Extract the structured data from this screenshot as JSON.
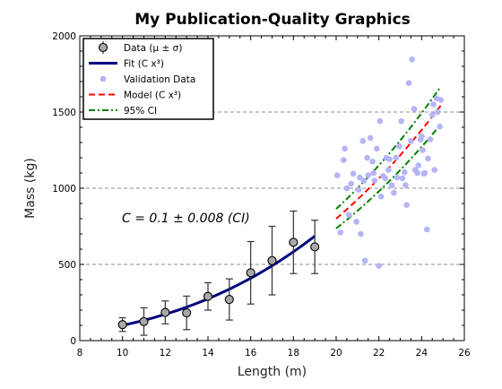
{
  "chart_data": {
    "type": "scatter",
    "title": "My Publication-Quality Graphics",
    "xlabel": "Length (m)",
    "ylabel": "Mass (kg)",
    "xlim": [
      8,
      26
    ],
    "ylim": [
      0,
      2000
    ],
    "xticks": [
      8,
      10,
      12,
      14,
      16,
      18,
      20,
      22,
      24,
      26
    ],
    "xtick_labels": [
      "8",
      "10",
      "12",
      "14",
      "16",
      "18",
      "20",
      "22",
      "24",
      "26"
    ],
    "yticks": [
      0,
      500,
      1000,
      1500,
      2000
    ],
    "ytick_labels": [
      "0",
      "500",
      "1000",
      "1500",
      "2000"
    ],
    "grid": "horizontal dashed",
    "legend_position": "top-left",
    "annotation": "C = 0.1 ± 0.008 (CI)",
    "legend": [
      {
        "label": "Data (μ ± σ)",
        "kind": "marker-errorbar",
        "color": "#a8a8a8"
      },
      {
        "label": "Fit (C x³)",
        "kind": "line",
        "color": "#00007f"
      },
      {
        "label": "Validation Data",
        "kind": "point",
        "color": "#b4b4f6"
      },
      {
        "label": "Model (C x³)",
        "kind": "dashed",
        "color": "#ff0000"
      },
      {
        "label": "95% CI",
        "kind": "dashdot",
        "color": "#008000"
      }
    ],
    "series": [
      {
        "name": "Data (μ ± σ)",
        "x": [
          10,
          11,
          12,
          13,
          14,
          15,
          16,
          17,
          18,
          19
        ],
        "y": [
          105,
          125,
          185,
          182,
          290,
          270,
          445,
          525,
          645,
          615
        ],
        "err": [
          45,
          90,
          75,
          110,
          90,
          135,
          205,
          225,
          205,
          175
        ]
      },
      {
        "name": "Fit (C x³)",
        "x_range": [
          10,
          19
        ],
        "C": 0.1
      },
      {
        "name": "Validation Data",
        "x": [
          20.05,
          20.2,
          20.35,
          20.5,
          20.6,
          20.7,
          20.8,
          20.95,
          21.05,
          21.1,
          21.15,
          21.25,
          21.3,
          21.35,
          21.45,
          21.5,
          21.6,
          21.7,
          21.8,
          21.9,
          22.0,
          22.05,
          22.1,
          22.2,
          22.3,
          22.35,
          22.45,
          22.5,
          22.6,
          22.7,
          22.8,
          22.85,
          22.95,
          23.05,
          23.1,
          23.2,
          23.3,
          23.4,
          23.5,
          23.55,
          23.65,
          23.7,
          23.8,
          23.85,
          23.95,
          24.0,
          24.1,
          24.15,
          24.25,
          24.3,
          24.4,
          24.5,
          24.55,
          24.6,
          24.7,
          24.75,
          24.85,
          24.9,
          20.4,
          21.75,
          23.25,
          24.05
        ],
        "y": [
          1085,
          710,
          1185,
          1000,
          825,
          1030,
          1095,
          780,
          990,
          1070,
          700,
          1310,
          1050,
          525,
          1200,
          1085,
          1330,
          1175,
          1050,
          1260,
          490,
          1440,
          945,
          1080,
          1065,
          1200,
          1120,
          1190,
          1020,
          970,
          1200,
          1070,
          1275,
          1440,
          1065,
          1105,
          890,
          1690,
          1310,
          1845,
          1520,
          1120,
          1100,
          1150,
          1320,
          1340,
          1095,
          1100,
          730,
          1195,
          1320,
          1480,
          1550,
          1120,
          1590,
          1500,
          1405,
          1580,
          1260,
          1100,
          1020,
          1250
        ]
      },
      {
        "name": "Model (C x³)",
        "x_range": [
          20,
          24.9
        ],
        "C": 0.1
      },
      {
        "name": "95% CI",
        "x_range": [
          20,
          24.9
        ],
        "C_lower": 0.092,
        "C_upper": 0.108
      }
    ]
  }
}
